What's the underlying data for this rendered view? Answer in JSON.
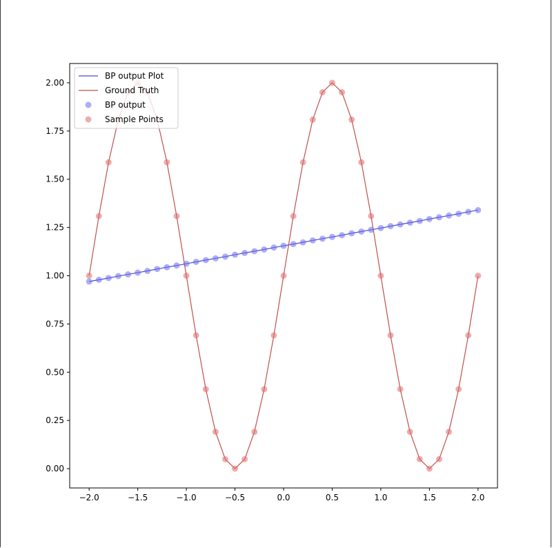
{
  "chart_data": {
    "type": "line",
    "title": "",
    "xlabel": "",
    "ylabel": "",
    "xlim": [
      -2.2,
      2.2
    ],
    "ylim": [
      -0.1,
      2.1
    ],
    "x_ticks": [
      -2.0,
      -1.5,
      -1.0,
      -0.5,
      0.0,
      0.5,
      1.0,
      1.5,
      2.0
    ],
    "x_tick_labels": [
      "−2.0",
      "−1.5",
      "−1.0",
      "−0.5",
      "0.0",
      "0.5",
      "1.0",
      "1.5",
      "2.0"
    ],
    "y_ticks": [
      0.0,
      0.25,
      0.5,
      0.75,
      1.0,
      1.25,
      1.5,
      1.75,
      2.0
    ],
    "y_tick_labels": [
      "0.00",
      "0.25",
      "0.50",
      "0.75",
      "1.00",
      "1.25",
      "1.50",
      "1.75",
      "2.00"
    ],
    "grid": false,
    "legend_position": "top-left",
    "x": [
      -2.0,
      -1.9,
      -1.8,
      -1.7,
      -1.6,
      -1.5,
      -1.4,
      -1.3,
      -1.2,
      -1.1,
      -1.0,
      -0.9,
      -0.8,
      -0.7,
      -0.6,
      -0.5,
      -0.4,
      -0.3,
      -0.2,
      -0.1,
      0.0,
      0.1,
      0.2,
      0.3,
      0.4,
      0.5,
      0.6,
      0.7,
      0.8,
      0.9,
      1.0,
      1.1,
      1.2,
      1.3,
      1.4,
      1.5,
      1.6,
      1.7,
      1.8,
      1.9,
      2.0
    ],
    "series": [
      {
        "name": "BP output Plot",
        "kind": "line",
        "color": "#4a4ac8",
        "values": [
          0.97,
          0.979,
          0.988,
          0.998,
          1.007,
          1.016,
          1.025,
          1.035,
          1.044,
          1.053,
          1.062,
          1.072,
          1.081,
          1.09,
          1.099,
          1.109,
          1.118,
          1.127,
          1.136,
          1.146,
          1.155,
          1.164,
          1.173,
          1.183,
          1.192,
          1.201,
          1.21,
          1.22,
          1.229,
          1.238,
          1.247,
          1.257,
          1.266,
          1.275,
          1.284,
          1.294,
          1.303,
          1.312,
          1.321,
          1.331,
          1.34
        ]
      },
      {
        "name": "Ground Truth",
        "kind": "line",
        "color": "#c0504d",
        "values": [
          1.0,
          1.309,
          1.588,
          1.809,
          1.951,
          2.0,
          1.951,
          1.809,
          1.588,
          1.309,
          1.0,
          0.691,
          0.412,
          0.191,
          0.049,
          0.0,
          0.049,
          0.191,
          0.412,
          0.691,
          1.0,
          1.309,
          1.588,
          1.809,
          1.951,
          2.0,
          1.951,
          1.809,
          1.588,
          1.309,
          1.0,
          0.691,
          0.412,
          0.191,
          0.049,
          0.0,
          0.049,
          0.191,
          0.412,
          0.691,
          1.0
        ]
      },
      {
        "name": "BP output",
        "kind": "scatter",
        "color": "#6b6bf0",
        "values": [
          0.97,
          0.979,
          0.988,
          0.998,
          1.007,
          1.016,
          1.025,
          1.035,
          1.044,
          1.053,
          1.062,
          1.072,
          1.081,
          1.09,
          1.099,
          1.109,
          1.118,
          1.127,
          1.136,
          1.146,
          1.155,
          1.164,
          1.173,
          1.183,
          1.192,
          1.201,
          1.21,
          1.22,
          1.229,
          1.238,
          1.247,
          1.257,
          1.266,
          1.275,
          1.284,
          1.294,
          1.303,
          1.312,
          1.321,
          1.331,
          1.34
        ]
      },
      {
        "name": "Sample Points",
        "kind": "scatter",
        "color": "#e06a6a",
        "values": [
          1.0,
          1.309,
          1.588,
          1.809,
          1.951,
          2.0,
          1.951,
          1.809,
          1.588,
          1.309,
          1.0,
          0.691,
          0.412,
          0.191,
          0.049,
          0.0,
          0.049,
          0.191,
          0.412,
          0.691,
          1.0,
          1.309,
          1.588,
          1.809,
          1.951,
          2.0,
          1.951,
          1.809,
          1.588,
          1.309,
          1.0,
          0.691,
          0.412,
          0.191,
          0.049,
          0.0,
          0.049,
          0.191,
          0.412,
          0.691,
          1.0
        ]
      }
    ]
  }
}
